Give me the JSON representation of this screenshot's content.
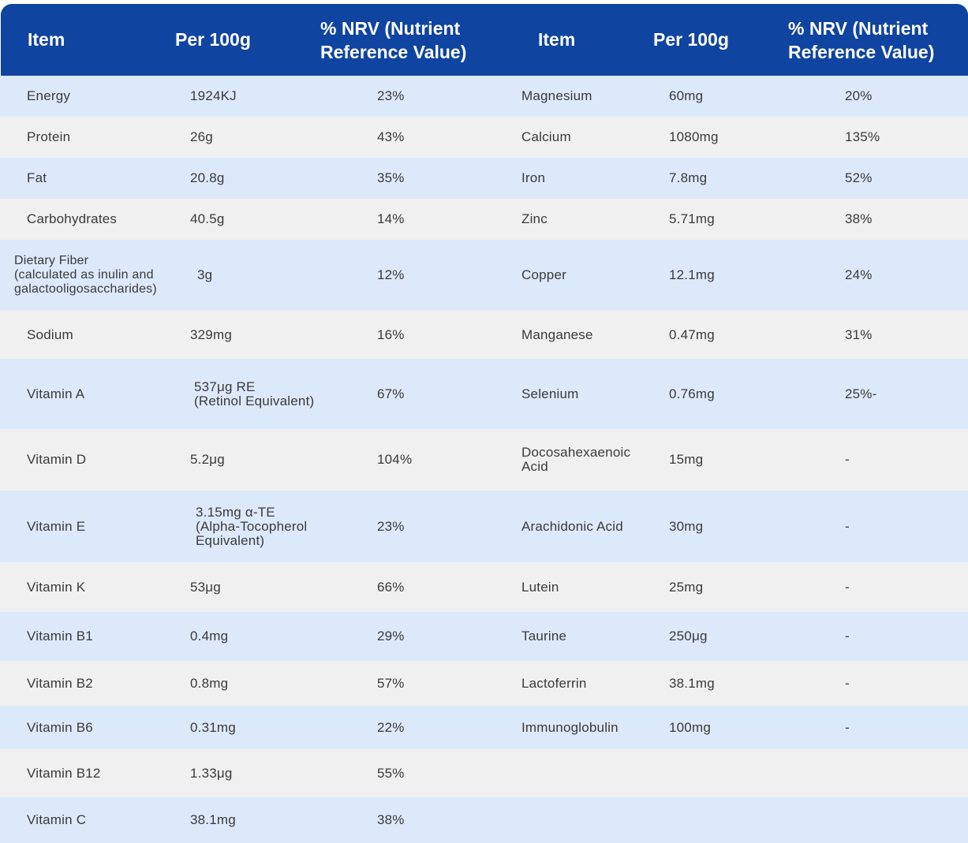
{
  "header": {
    "left": {
      "item": "Item",
      "per100g": "Per 100g",
      "nrv": "% NRV (Nutrient\nReference Value)"
    },
    "right": {
      "item": "Item",
      "per100g": "Per 100g",
      "nrv": "% NRV (Nutrient\nReference Value)"
    }
  },
  "colors": {
    "header_bg": "#0f44a0",
    "row_blue": "#dce9fb",
    "row_gray": "#f0f0f0"
  },
  "rows": [
    {
      "left": {
        "item": "Energy",
        "per100g": "1924KJ",
        "nrv": "23%"
      },
      "right": {
        "item": "Magnesium",
        "per100g": "60mg",
        "nrv": "20%"
      }
    },
    {
      "left": {
        "item": "Protein",
        "per100g": "26g",
        "nrv": "43%"
      },
      "right": {
        "item": "Calcium",
        "per100g": "1080mg",
        "nrv": "135%"
      }
    },
    {
      "left": {
        "item": "Fat",
        "per100g": "20.8g",
        "nrv": "35%"
      },
      "right": {
        "item": "Iron",
        "per100g": "7.8mg",
        "nrv": "52%"
      }
    },
    {
      "left": {
        "item": "Carbohydrates",
        "per100g": "40.5g",
        "nrv": "14%"
      },
      "right": {
        "item": "Zinc",
        "per100g": "5.71mg",
        "nrv": "38%"
      }
    },
    {
      "left": {
        "item": "Dietary Fiber\n(calculated as inulin and\ngalactooligosaccharides)",
        "per100g": "3g",
        "nrv": "12%"
      },
      "right": {
        "item": "Copper",
        "per100g": "12.1mg",
        "nrv": "24%"
      }
    },
    {
      "left": {
        "item": "Sodium",
        "per100g": "329mg",
        "nrv": "16%"
      },
      "right": {
        "item": "Manganese",
        "per100g": "0.47mg",
        "nrv": "31%"
      }
    },
    {
      "left": {
        "item": "Vitamin A",
        "per100g": "537μg RE\n (Retinol Equivalent)",
        "nrv": "67%"
      },
      "right": {
        "item": "Selenium",
        "per100g": "0.76mg",
        "nrv": "25%-"
      }
    },
    {
      "left": {
        "item": "Vitamin D",
        "per100g": "5.2μg",
        "nrv": "104%"
      },
      "right": {
        "item": "Docosahexaenoic\nAcid",
        "per100g": "15mg",
        "nrv": "-"
      }
    },
    {
      "left": {
        "item": "Vitamin E",
        "per100g": "3.15mg α-TE\n(Alpha-Tocopherol\nEquivalent)",
        "nrv": "23%"
      },
      "right": {
        "item": "Arachidonic Acid",
        "per100g": "30mg",
        "nrv": "-"
      }
    },
    {
      "left": {
        "item": "Vitamin K",
        "per100g": "53μg",
        "nrv": "66%"
      },
      "right": {
        "item": "Lutein",
        "per100g": "25mg",
        "nrv": "-"
      }
    },
    {
      "left": {
        "item": "Vitamin B1",
        "per100g": "0.4mg",
        "nrv": "29%"
      },
      "right": {
        "item": "Taurine",
        "per100g": "250μg",
        "nrv": "-"
      }
    },
    {
      "left": {
        "item": "Vitamin B2",
        "per100g": "0.8mg",
        "nrv": "57%"
      },
      "right": {
        "item": "Lactoferrin",
        "per100g": "38.1mg",
        "nrv": "-"
      }
    },
    {
      "left": {
        "item": "Vitamin B6",
        "per100g": "0.31mg",
        "nrv": "22%"
      },
      "right": {
        "item": "Immunoglobulin",
        "per100g": "100mg",
        "nrv": "-"
      }
    },
    {
      "left": {
        "item": "Vitamin B12",
        "per100g": "1.33μg",
        "nrv": "55%"
      },
      "right": {
        "item": "",
        "per100g": "",
        "nrv": ""
      }
    },
    {
      "left": {
        "item": "Vitamin C",
        "per100g": "38.1mg",
        "nrv": "38%"
      },
      "right": {
        "item": "",
        "per100g": "",
        "nrv": ""
      }
    }
  ]
}
